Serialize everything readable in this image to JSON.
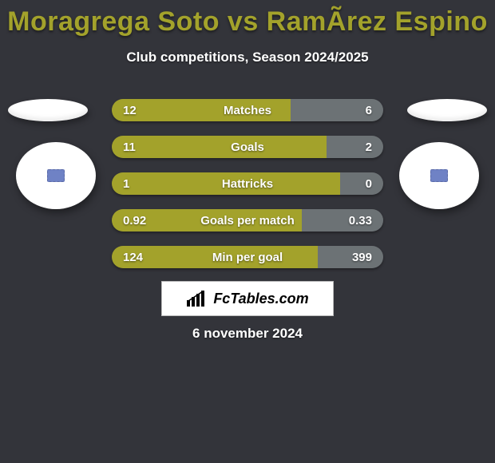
{
  "background_color": "#33343a",
  "title": {
    "text": "Moragrega Soto vs RamÃ­rez Espino",
    "color": "#a3a22b",
    "fontsize": 34
  },
  "subtitle": "Club competitions, Season 2024/2025",
  "date": "6 november 2024",
  "watermark": "FcTables.com",
  "palette": {
    "left_seg": "#a3a22b",
    "right_seg": "#6c7275",
    "label_text": "#ffffff"
  },
  "stats": [
    {
      "label": "Matches",
      "left_val": "12",
      "right_val": "6",
      "left_pct": 66,
      "right_pct": 34
    },
    {
      "label": "Goals",
      "left_val": "11",
      "right_val": "2",
      "left_pct": 79,
      "right_pct": 21
    },
    {
      "label": "Hattricks",
      "left_val": "1",
      "right_val": "0",
      "left_pct": 84,
      "right_pct": 16
    },
    {
      "label": "Goals per match",
      "left_val": "0.92",
      "right_val": "0.33",
      "left_pct": 70,
      "right_pct": 30
    },
    {
      "label": "Min per goal",
      "left_val": "124",
      "right_val": "399",
      "left_pct": 76,
      "right_pct": 24
    }
  ]
}
